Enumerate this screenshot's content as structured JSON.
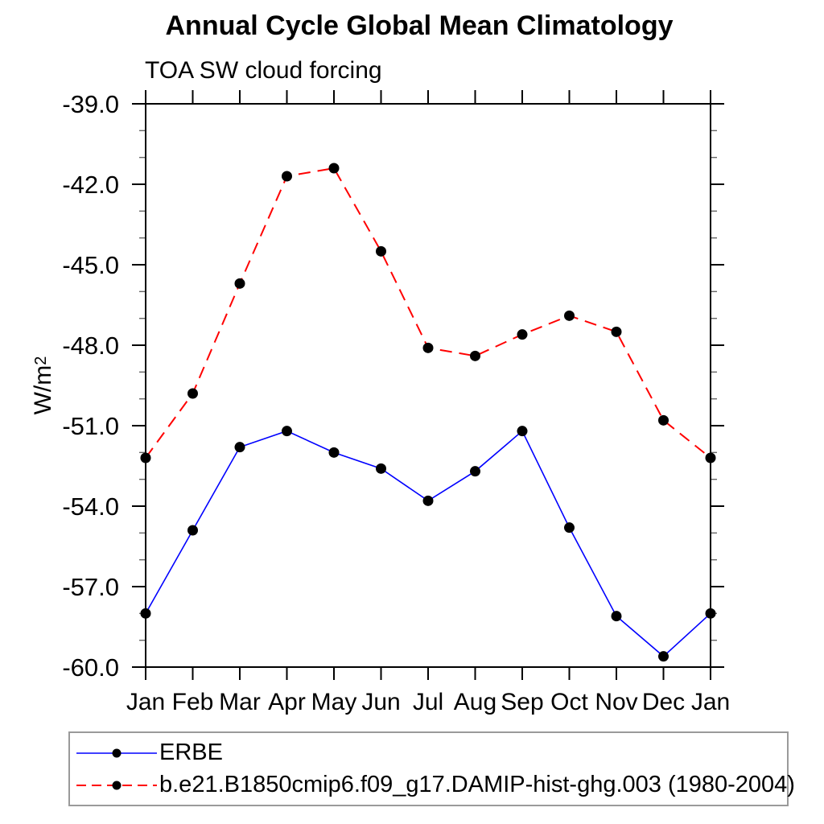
{
  "figure": {
    "title": "Annual Cycle Global Mean Climatology",
    "subtitle": "TOA SW cloud forcing",
    "ylabel_base": "W/m",
    "ylabel_sup": "2"
  },
  "legend": {
    "entries": [
      {
        "label": "ERBE",
        "color": "#0000ff",
        "style": "solid"
      },
      {
        "label": "b.e21.B1850cmip6.f09_g17.DAMIP-hist-ghg.003 (1980-2004)",
        "color": "#ff0000",
        "style": "dashed"
      }
    ]
  },
  "chart_data": {
    "type": "line",
    "title": "Annual Cycle Global Mean Climatology",
    "subtitle": "TOA SW cloud forcing",
    "xlabel": "",
    "ylabel": "W/m2",
    "x_categories": [
      "Jan",
      "Feb",
      "Mar",
      "Apr",
      "May",
      "Jun",
      "Jul",
      "Aug",
      "Sep",
      "Oct",
      "Nov",
      "Dec",
      "Jan"
    ],
    "ylim": [
      -60.0,
      -39.0
    ],
    "y_major_tick_step": 3.0,
    "y_minor_tick_step": 1.0,
    "y_tick_labels": [
      "-39.0",
      "-42.0",
      "-45.0",
      "-48.0",
      "-51.0",
      "-54.0",
      "-57.0",
      "-60.0"
    ],
    "grid": false,
    "legend_position": "bottom",
    "series": [
      {
        "name": "ERBE",
        "color": "#0000ff",
        "line_style": "solid",
        "marker": "filled-circle",
        "marker_color": "#000000",
        "values": [
          -58.0,
          -54.9,
          -51.8,
          -51.2,
          -52.0,
          -52.6,
          -53.8,
          -52.7,
          -51.2,
          -54.8,
          -58.1,
          -59.6,
          -58.0
        ]
      },
      {
        "name": "b.e21.B1850cmip6.f09_g17.DAMIP-hist-ghg.003 (1980-2004)",
        "color": "#ff0000",
        "line_style": "dashed",
        "marker": "filled-circle",
        "marker_color": "#000000",
        "values": [
          -52.2,
          -49.8,
          -45.7,
          -41.7,
          -41.4,
          -44.5,
          -48.1,
          -48.4,
          -47.6,
          -46.9,
          -47.5,
          -50.8,
          -52.2
        ]
      }
    ]
  }
}
